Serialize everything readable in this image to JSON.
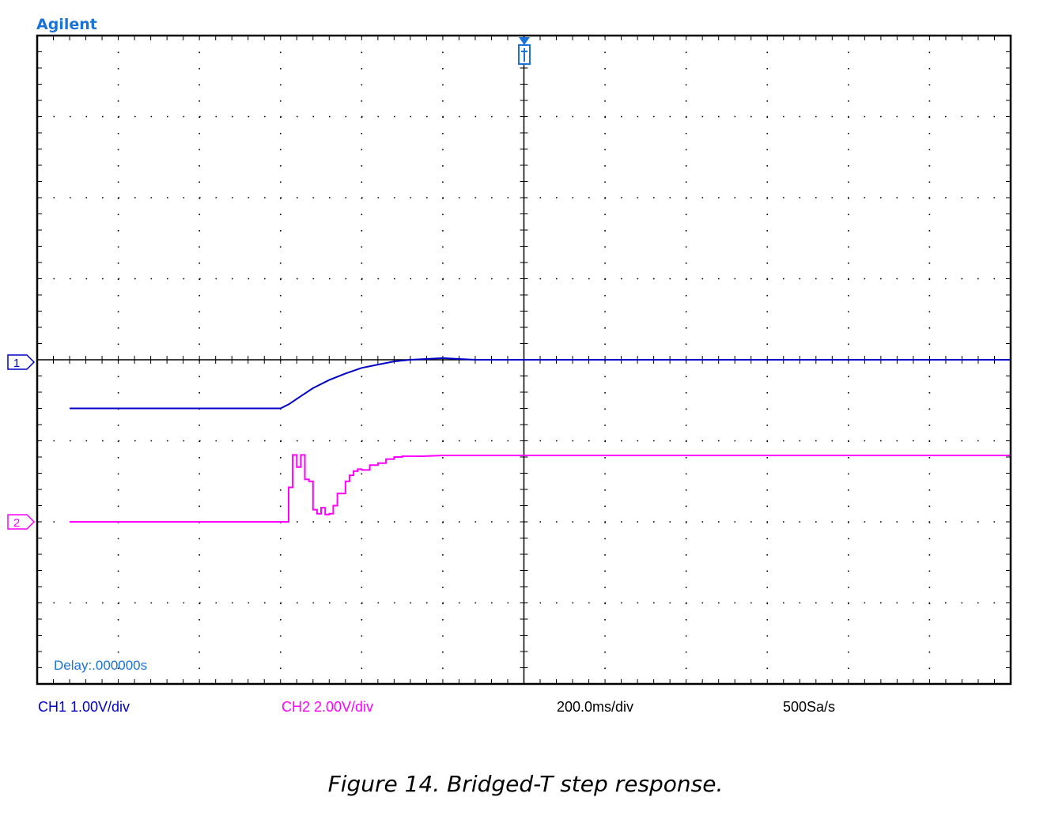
{
  "brand": "Agilent",
  "delay_label": "Delay:.000000s",
  "footer": {
    "ch1_scale": "CH1 1.00V/div",
    "ch2_scale": "CH2 2.00V/div",
    "timebase": "200.0ms/div",
    "sample_rate": "500Sa/s"
  },
  "caption": "Figure 14. Bridged-T step response.",
  "markers": {
    "ch1": "1",
    "ch2": "2"
  },
  "colors": {
    "ch1": "#0000c8",
    "ch2": "#ff00ff",
    "brand": "#1a73d9",
    "grid": "#000000"
  },
  "chart_data": {
    "type": "line",
    "grid": true,
    "divisions": {
      "x": 12,
      "y": 8
    },
    "xlim": [
      -1.2,
      1.2
    ],
    "series": [
      {
        "name": "CH1",
        "x": [
          -1.12,
          -0.6,
          -0.58,
          -0.55,
          -0.52,
          -0.48,
          -0.44,
          -0.4,
          -0.36,
          -0.32,
          -0.28,
          -0.24,
          -0.2,
          -0.16,
          -0.12,
          -0.08,
          0.0,
          0.4,
          1.2
        ],
        "y": [
          -0.6,
          -0.6,
          -0.55,
          -0.45,
          -0.35,
          -0.25,
          -0.17,
          -0.1,
          -0.06,
          -0.02,
          0.0,
          0.01,
          0.02,
          0.01,
          0.0,
          0.0,
          0.0,
          0.0,
          0.0
        ]
      },
      {
        "name": "CH2",
        "x": [
          -1.12,
          -0.58,
          -0.58,
          -0.57,
          -0.57,
          -0.56,
          -0.56,
          -0.55,
          -0.55,
          -0.54,
          -0.54,
          -0.53,
          -0.53,
          -0.52,
          -0.52,
          -0.51,
          -0.51,
          -0.5,
          -0.5,
          -0.49,
          -0.49,
          -0.48,
          -0.48,
          -0.47,
          -0.47,
          -0.46,
          -0.46,
          -0.45,
          -0.45,
          -0.44,
          -0.44,
          -0.43,
          -0.43,
          -0.42,
          -0.42,
          -0.41,
          -0.41,
          -0.4,
          -0.4,
          -0.38,
          -0.38,
          -0.36,
          -0.36,
          -0.34,
          -0.34,
          -0.32,
          -0.32,
          -0.3,
          -0.3,
          -0.25,
          -0.2,
          1.2
        ],
        "y": [
          0.0,
          0.0,
          0.85,
          0.85,
          1.65,
          1.65,
          1.35,
          1.35,
          1.65,
          1.65,
          1.05,
          1.05,
          1.0,
          1.0,
          0.3,
          0.3,
          0.2,
          0.2,
          0.35,
          0.35,
          0.18,
          0.18,
          0.2,
          0.2,
          0.4,
          0.4,
          0.7,
          0.7,
          0.7,
          0.7,
          1.0,
          1.0,
          1.15,
          1.15,
          1.25,
          1.25,
          1.3,
          1.3,
          1.28,
          1.28,
          1.4,
          1.4,
          1.45,
          1.45,
          1.55,
          1.55,
          1.6,
          1.6,
          1.62,
          1.62,
          1.64,
          1.64
        ]
      }
    ],
    "channel_scale": {
      "ch1_volts_per_div": 1.0,
      "ch2_volts_per_div": 2.0
    },
    "channel_offset_div": {
      "ch1": 0,
      "ch2": -2
    },
    "annotations": [
      "Delay:.000000s"
    ]
  }
}
